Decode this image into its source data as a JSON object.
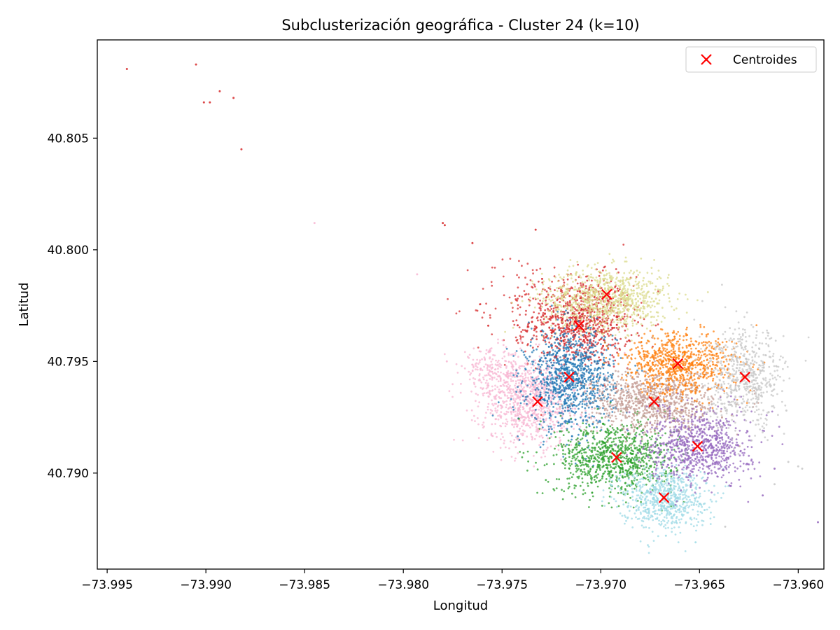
{
  "chart_data": {
    "type": "scatter",
    "title": "Subclusterización geográfica - Cluster 24 (k=10)",
    "xlabel": "Longitud",
    "ylabel": "Latitud",
    "xlim": [
      -73.9955,
      -73.9587
    ],
    "ylim": [
      40.7857,
      40.8094
    ],
    "xticks": [
      -73.995,
      -73.99,
      -73.985,
      -73.98,
      -73.975,
      -73.97,
      -73.965,
      -73.96
    ],
    "xtick_labels": [
      "−73.995",
      "−73.990",
      "−73.985",
      "−73.980",
      "−73.975",
      "−73.970",
      "−73.965",
      "−73.960"
    ],
    "yticks": [
      40.79,
      40.795,
      40.8,
      40.805
    ],
    "ytick_labels": [
      "40.790",
      "40.795",
      "40.800",
      "40.805"
    ],
    "grid": false,
    "legend": {
      "position": "top-right",
      "entries": [
        "Centroides"
      ]
    },
    "centroid_color": "#ff0000",
    "centroids": [
      {
        "x": -73.9732,
        "y": 40.7932
      },
      {
        "x": -73.9716,
        "y": 40.7943
      },
      {
        "x": -73.9711,
        "y": 40.7966
      },
      {
        "x": -73.9697,
        "y": 40.798
      },
      {
        "x": -73.9661,
        "y": 40.7949
      },
      {
        "x": -73.9627,
        "y": 40.7943
      },
      {
        "x": -73.9673,
        "y": 40.7932
      },
      {
        "x": -73.9651,
        "y": 40.7912
      },
      {
        "x": -73.9692,
        "y": 40.7907
      },
      {
        "x": -73.9668,
        "y": 40.7889
      }
    ],
    "series": [
      {
        "color": "#d62728",
        "regions": [
          {
            "x": -73.971,
            "y": 40.7968,
            "sx": 0.0013,
            "sy": 0.001,
            "n": 900
          },
          {
            "x": -73.974,
            "y": 40.7975,
            "sx": 0.0012,
            "sy": 0.0012,
            "n": 90,
            "alpha": 0.7
          }
        ],
        "points": [
          {
            "x": -73.994,
            "y": 40.8081
          },
          {
            "x": -73.9905,
            "y": 40.8083
          },
          {
            "x": -73.9901,
            "y": 40.8066
          },
          {
            "x": -73.9898,
            "y": 40.8066
          },
          {
            "x": -73.9893,
            "y": 40.8071
          },
          {
            "x": -73.9886,
            "y": 40.8068
          },
          {
            "x": -73.9882,
            "y": 40.8045
          },
          {
            "x": -73.978,
            "y": 40.8012
          },
          {
            "x": -73.9779,
            "y": 40.8011
          },
          {
            "x": -73.9765,
            "y": 40.8003
          },
          {
            "x": -73.9733,
            "y": 40.8009
          },
          {
            "x": -73.9757,
            "y": 40.7966
          }
        ]
      },
      {
        "color": "#dbdb8d",
        "regions": [
          {
            "x": -73.9697,
            "y": 40.7978,
            "sx": 0.0016,
            "sy": 0.0007,
            "n": 900
          }
        ],
        "points": []
      },
      {
        "color": "#f7b6d2",
        "regions": [
          {
            "x": -73.9735,
            "y": 40.7932,
            "sx": 0.0013,
            "sy": 0.001,
            "n": 900
          },
          {
            "x": -73.9755,
            "y": 40.7945,
            "sx": 0.0008,
            "sy": 0.0005,
            "n": 200
          }
        ],
        "points": [
          {
            "x": -73.9845,
            "y": 40.8012
          },
          {
            "x": -73.9793,
            "y": 40.7989
          },
          {
            "x": -73.9778,
            "y": 40.795
          }
        ]
      },
      {
        "color": "#1f77b4",
        "regions": [
          {
            "x": -73.9715,
            "y": 40.7942,
            "sx": 0.0011,
            "sy": 0.0011,
            "n": 1000
          }
        ],
        "points": []
      },
      {
        "color": "#2ca02c",
        "regions": [
          {
            "x": -73.9693,
            "y": 40.7907,
            "sx": 0.0015,
            "sy": 0.0008,
            "n": 900
          }
        ],
        "points": []
      },
      {
        "color": "#9edae5",
        "regions": [
          {
            "x": -73.9668,
            "y": 40.7889,
            "sx": 0.0011,
            "sy": 0.0007,
            "n": 700
          }
        ],
        "points": [
          {
            "x": -73.9667,
            "y": 40.7872
          },
          {
            "x": -73.9652,
            "y": 40.7869
          }
        ]
      },
      {
        "color": "#c49c94",
        "regions": [
          {
            "x": -73.9673,
            "y": 40.7932,
            "sx": 0.0016,
            "sy": 0.0007,
            "n": 900
          }
        ],
        "points": []
      },
      {
        "color": "#9467bd",
        "regions": [
          {
            "x": -73.965,
            "y": 40.7912,
            "sx": 0.0013,
            "sy": 0.0008,
            "n": 800
          }
        ],
        "points": [
          {
            "x": -73.9618,
            "y": 40.789
          },
          {
            "x": -73.9612,
            "y": 40.7902
          },
          {
            "x": -73.959,
            "y": 40.7878
          }
        ]
      },
      {
        "color": "#ff7f0e",
        "regions": [
          {
            "x": -73.966,
            "y": 40.7949,
            "sx": 0.0014,
            "sy": 0.0007,
            "n": 800
          }
        ],
        "points": []
      },
      {
        "color": "#c7c7c7",
        "regions": [
          {
            "x": -73.9627,
            "y": 40.7942,
            "sx": 0.001,
            "sy": 0.0011,
            "n": 600
          }
        ],
        "points": [
          {
            "x": -73.9605,
            "y": 40.7905
          },
          {
            "x": -73.96,
            "y": 40.7903
          },
          {
            "x": -73.9612,
            "y": 40.7895
          },
          {
            "x": -73.9598,
            "y": 40.7902
          },
          {
            "x": -73.9606,
            "y": 40.7928
          },
          {
            "x": -73.9637,
            "y": 40.7876
          }
        ]
      }
    ]
  }
}
